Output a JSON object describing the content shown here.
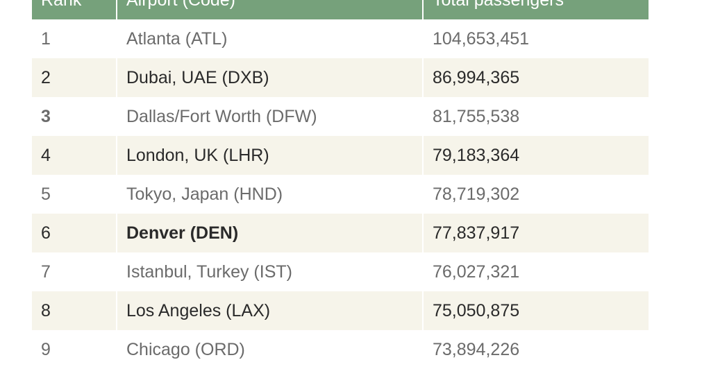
{
  "table": {
    "headers": [
      "Rank",
      "Airport (Code)",
      "Total passengers"
    ],
    "rows": [
      {
        "rank": "1",
        "airport": "Atlanta (ATL)",
        "passengers": "104,653,451"
      },
      {
        "rank": "2",
        "airport": "Dubai, UAE (DXB)",
        "passengers": "86,994,365"
      },
      {
        "rank": "3",
        "airport": "Dallas/Fort Worth (DFW)",
        "passengers": "81,755,538"
      },
      {
        "rank": "4",
        "airport": "London, UK (LHR)",
        "passengers": "79,183,364"
      },
      {
        "rank": "5",
        "airport": "Tokyo, Japan (HND)",
        "passengers": "78,719,302"
      },
      {
        "rank": "6",
        "airport": "Denver (DEN)",
        "passengers": "77,837,917"
      },
      {
        "rank": "7",
        "airport": "Istanbul, Turkey (IST)",
        "passengers": "76,027,321"
      },
      {
        "rank": "8",
        "airport": "Los Angeles (LAX)",
        "passengers": "75,050,875"
      },
      {
        "rank": "9",
        "airport": "Chicago (ORD)",
        "passengers": "73,894,226"
      }
    ]
  },
  "colors": {
    "header_bg": "#76a17b",
    "alt_row_bg": "#f6f4ea",
    "text_dark": "#2a2a2a",
    "text_muted": "#6b6b6b"
  }
}
